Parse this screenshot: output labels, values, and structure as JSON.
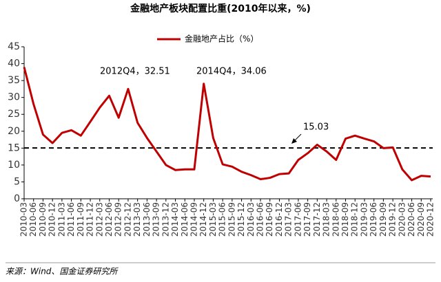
{
  "chart_data": {
    "type": "line",
    "title": "金融地产板块配置比重(2010年以来，%)",
    "categories": [
      "2010-03",
      "2010-06",
      "2010-09",
      "2010-12",
      "2011-03",
      "2011-06",
      "2011-09",
      "2011-12",
      "2012-03",
      "2012-06",
      "2012-09",
      "2012-12",
      "2013-03",
      "2013-06",
      "2013-09",
      "2013-12",
      "2014-03",
      "2014-06",
      "2014-09",
      "2014-12",
      "2015-03",
      "2015-06",
      "2015-09",
      "2015-12",
      "2016-03",
      "2016-06",
      "2016-09",
      "2016-12",
      "2017-03",
      "2017-06",
      "2017-09",
      "2017-12",
      "2018-03",
      "2018-06",
      "2018-09",
      "2018-12",
      "2019-03",
      "2019-06",
      "2019-09",
      "2019-12",
      "2020-03",
      "2020-06",
      "2020-09",
      "2020-12"
    ],
    "series": [
      {
        "name": "金融地产占比（%）",
        "color": "#c00000",
        "values": [
          39,
          28,
          19,
          16.5,
          19.5,
          20.3,
          18.7,
          22.8,
          27,
          30.5,
          24,
          32.51,
          22.5,
          18,
          14,
          10,
          8.5,
          8.7,
          8.7,
          34.06,
          18,
          10.2,
          9.5,
          8,
          7,
          5.8,
          6.2,
          7.3,
          7.5,
          11.5,
          13.5,
          16,
          14,
          11.5,
          17.8,
          18.7,
          17.8,
          17,
          15,
          15.2,
          8.7,
          5.5,
          6.8,
          6.6
        ]
      }
    ],
    "ylim": [
      0,
      45
    ],
    "yticks": [
      0,
      5,
      10,
      15,
      20,
      25,
      30,
      35,
      40,
      45
    ],
    "reference_line": 15.03,
    "annotations": [
      "2012Q4，32.51",
      "2014Q4，34.06"
    ],
    "source": "来源：Wind、国金证券研究所"
  }
}
